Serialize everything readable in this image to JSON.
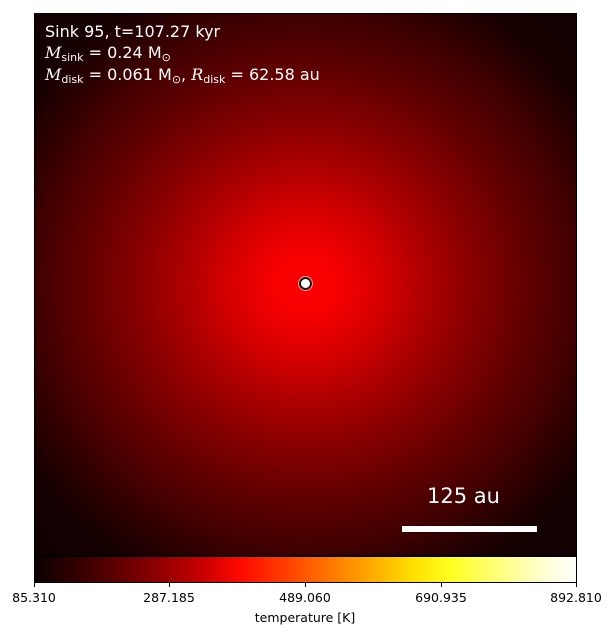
{
  "annotation": {
    "line1": "Sink 95, t=107.27 kyr",
    "m_sink_symbol": "M",
    "m_sink_sub": "sink",
    "m_sink_value": " = 0.24 M",
    "m_sink_unit_sub": "⊙",
    "m_disk_symbol": "M",
    "m_disk_sub": "disk",
    "m_disk_value": " = 0.061 M",
    "m_disk_unit_sub": "⊙",
    "sep": ", ",
    "r_disk_symbol": "R",
    "r_disk_sub": "disk",
    "r_disk_value": " = 62.58 au"
  },
  "scale_bar": {
    "label": "125 au"
  },
  "colorbar": {
    "label": "temperature [K]",
    "colormap": "hot",
    "min": 85.31,
    "max": 892.81,
    "ticks": [
      "85.310",
      "287.185",
      "489.060",
      "690.935",
      "892.810"
    ]
  },
  "colors": {
    "peak": "#ff0000",
    "edge": "#1a0000",
    "marker_fill": "#ffffff",
    "marker_edge": "#1a1a1a"
  }
}
